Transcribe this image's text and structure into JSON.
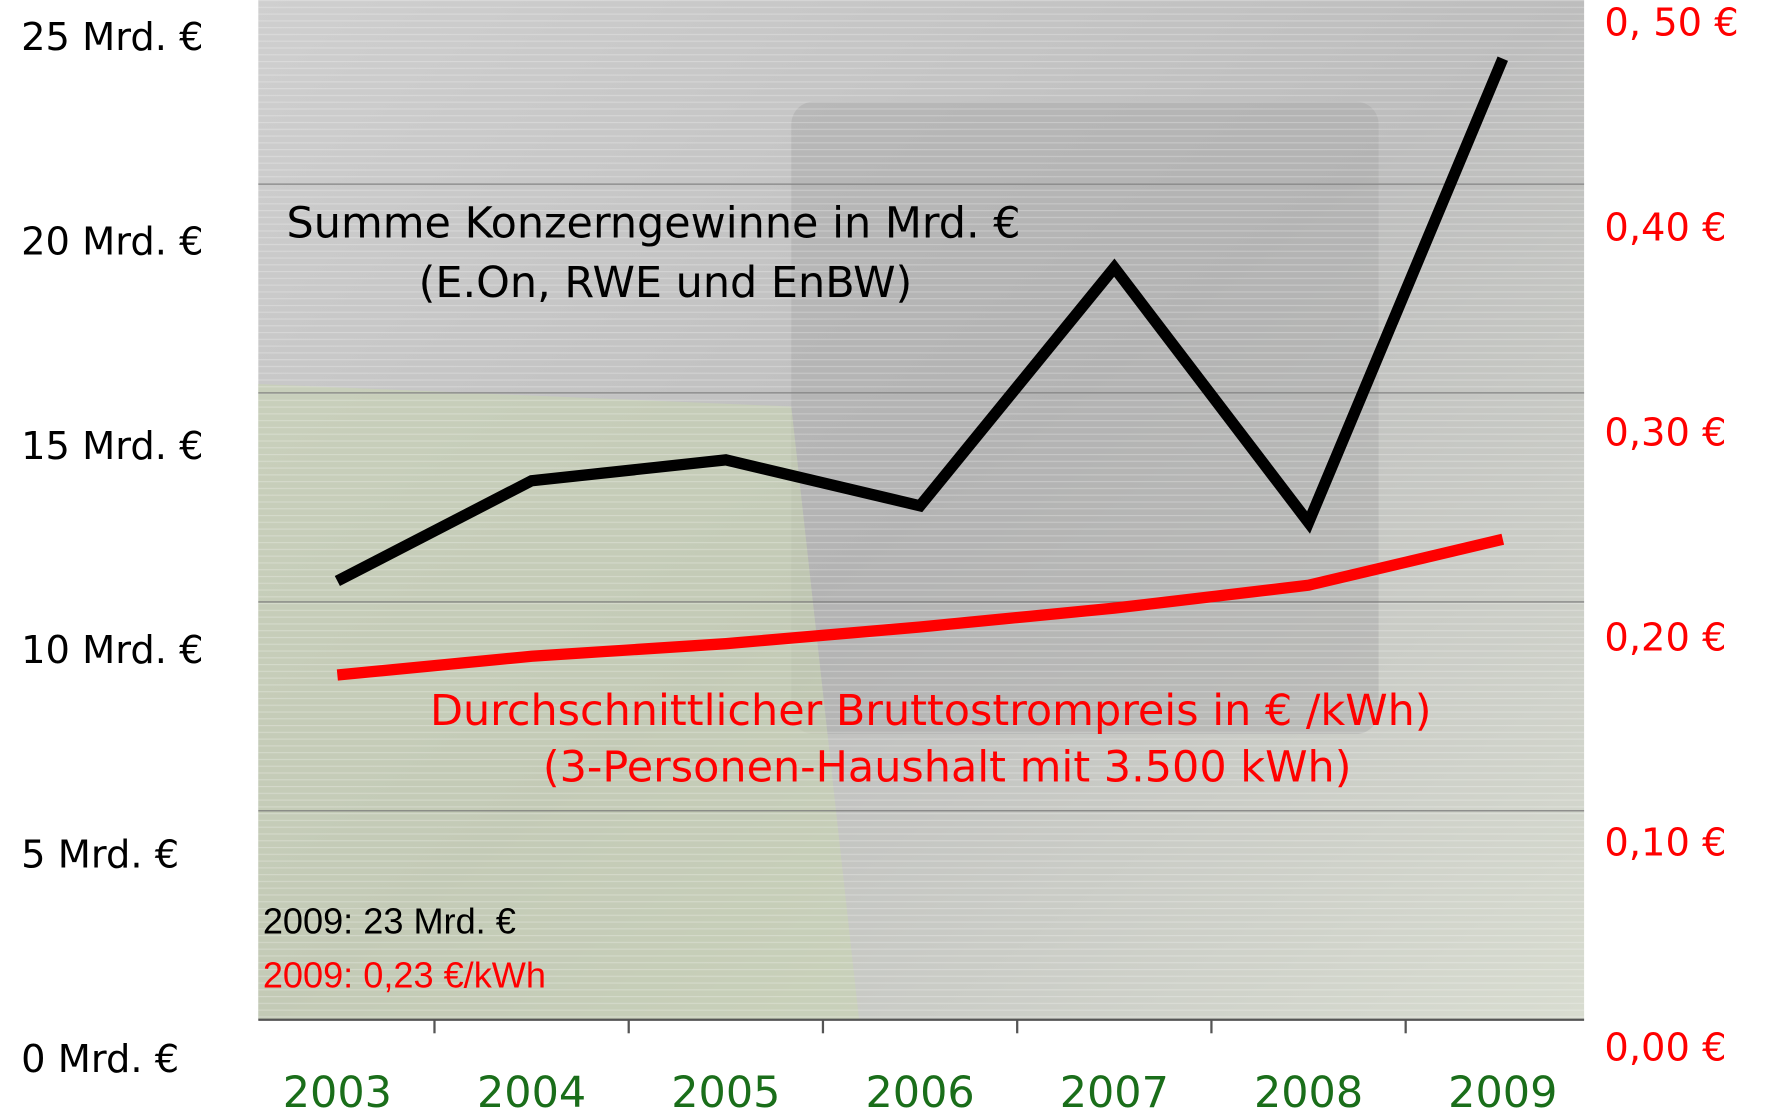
{
  "chart_data": {
    "type": "line",
    "categories": [
      "2003",
      "2004",
      "2005",
      "2006",
      "2007",
      "2008",
      "2009"
    ],
    "series": [
      {
        "name": "Summe Konzerngewinne in Mrd. €",
        "color": "#000000",
        "values": [
          10.5,
          12.9,
          13.4,
          12.3,
          18.0,
          11.9,
          23.0
        ]
      },
      {
        "name": "Durchschnittlicher Bruttostrompreis  in € /kWh)",
        "color": "#ff0000",
        "axis": "y2",
        "values": [
          0.165,
          0.174,
          0.18,
          0.188,
          0.197,
          0.208,
          0.23
        ]
      }
    ],
    "series_subtitles": [
      "(E.On, RWE und EnBW)",
      "(3-Personen-Haushalt mit 3.500 kWh)"
    ],
    "annotations": [
      "2009: 23 Mrd. €",
      "2009: 0,23 €/kWh"
    ],
    "ylim": [
      0,
      25
    ],
    "yticks": [
      {
        "value": 0,
        "label": "0 Mrd. €"
      },
      {
        "value": 5,
        "label": "5 Mrd. €"
      },
      {
        "value": 10,
        "label": "10 Mrd. €"
      },
      {
        "value": 15,
        "label": "15 Mrd. €"
      },
      {
        "value": 20,
        "label": "20 Mrd. €"
      },
      {
        "value": 25,
        "label": "25 Mrd. €"
      }
    ],
    "y2lim": [
      0,
      0.5
    ],
    "y2ticks": [
      {
        "value": 0,
        "label": "0,00 €"
      },
      {
        "value": 0.1,
        "label": "0,10 €"
      },
      {
        "value": 0.2,
        "label": "0,20 €"
      },
      {
        "value": 0.3,
        "label": "0,30 €"
      },
      {
        "value": 0.4,
        "label": "0,40 €"
      },
      {
        "value": 0.5,
        "label": "0, 50 €"
      }
    ],
    "grid": true,
    "xtick_color": "#1a6e1a"
  }
}
